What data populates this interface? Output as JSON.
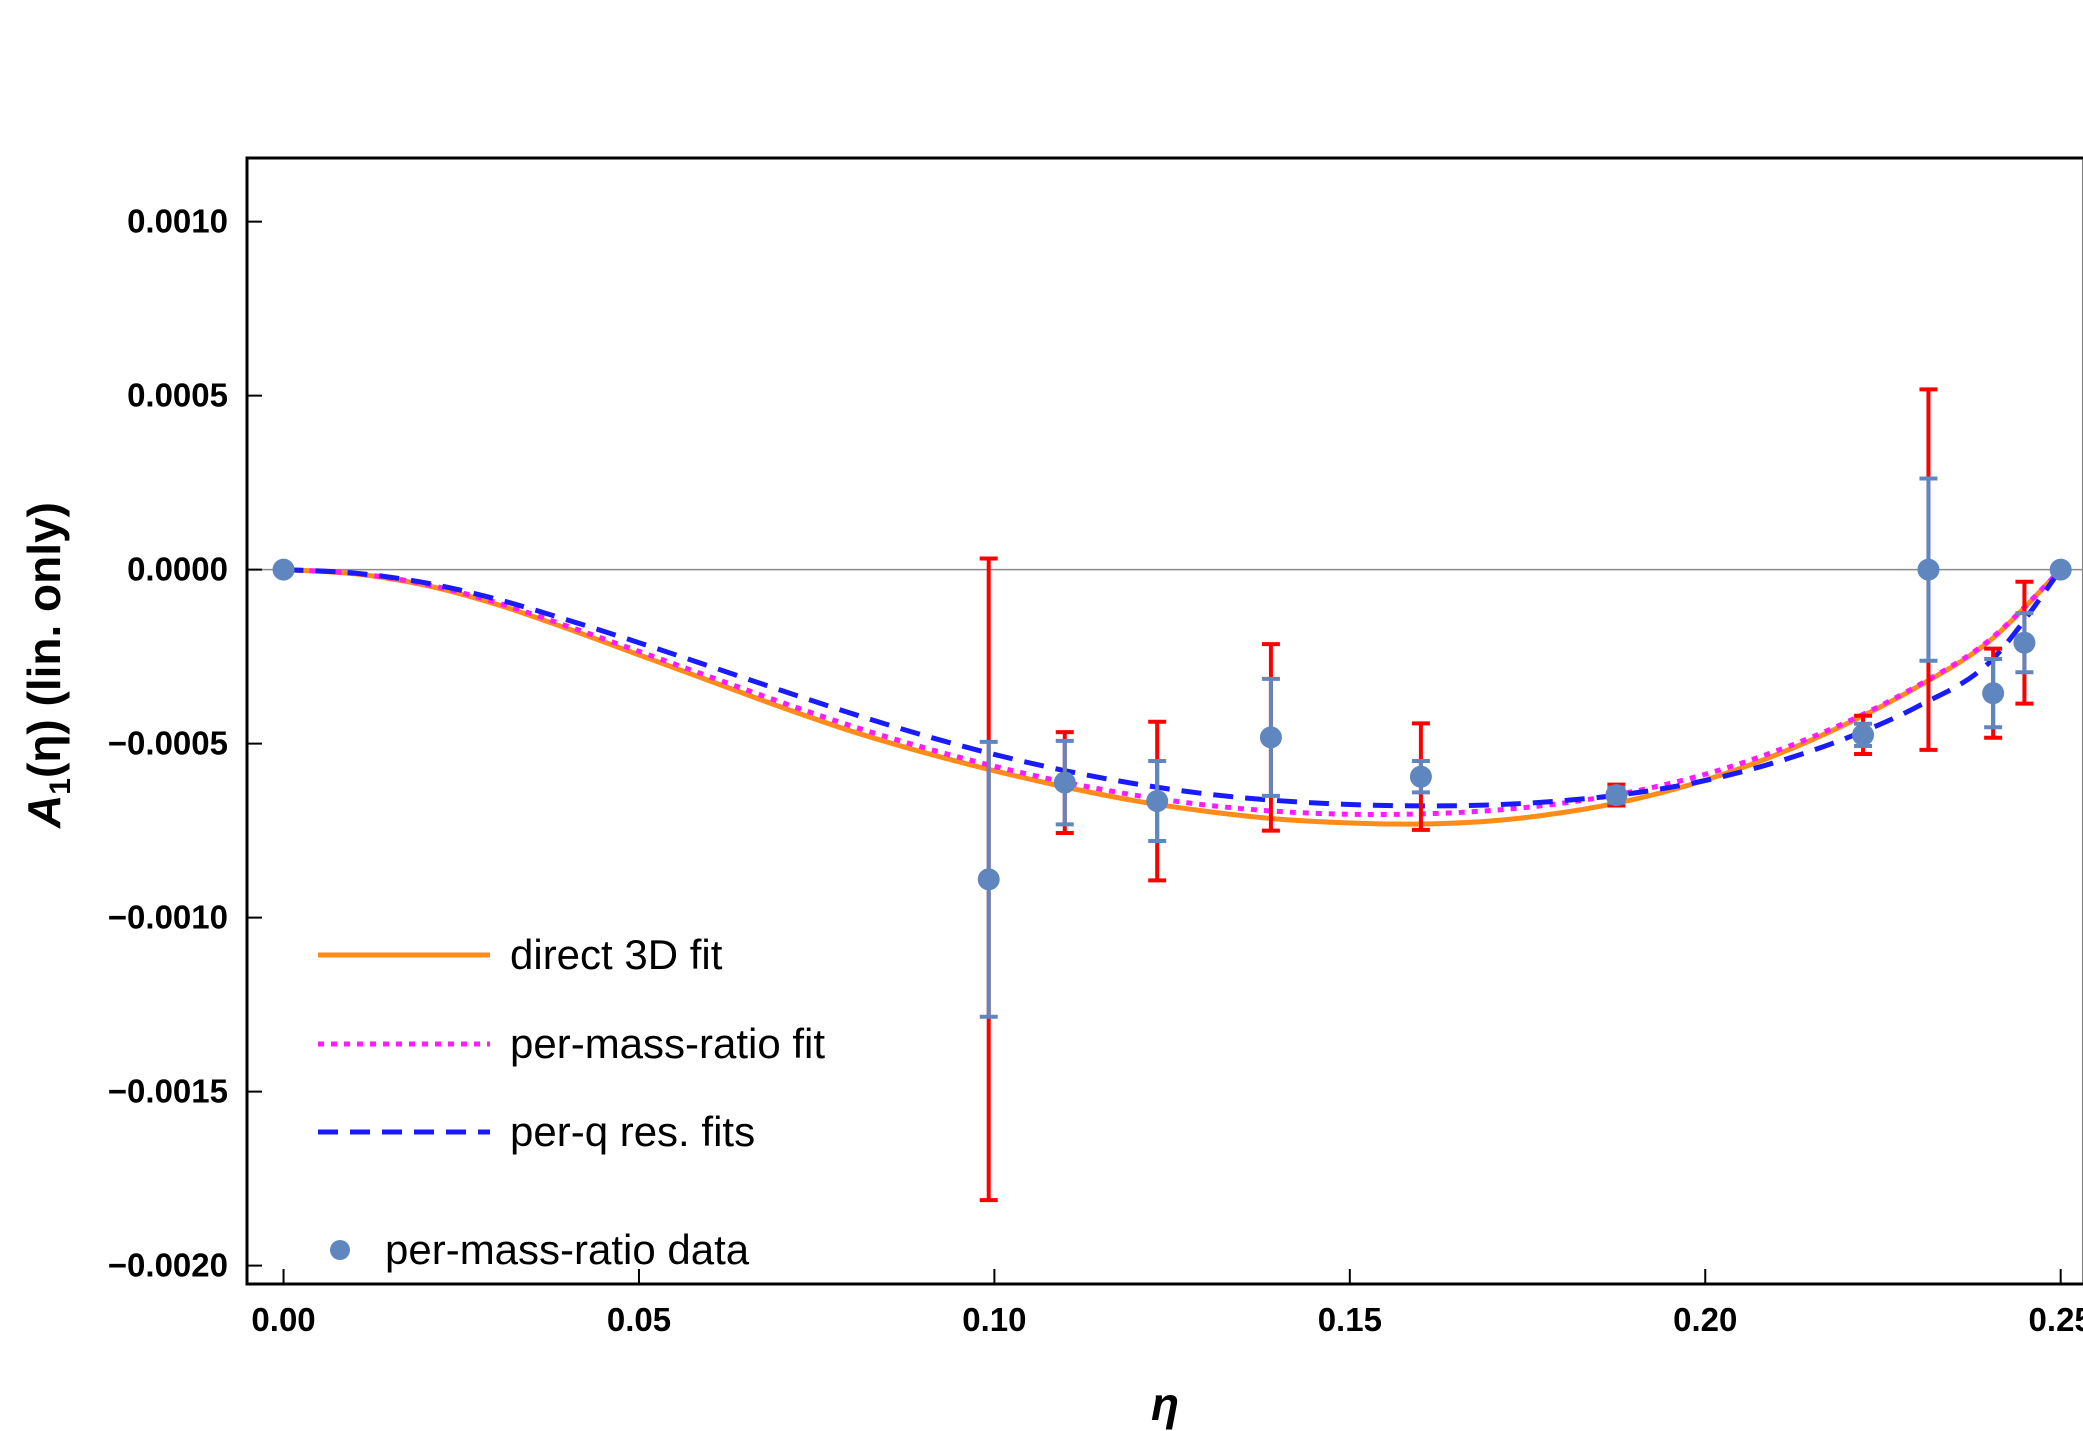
{
  "chart_data": {
    "type": "line",
    "title": "",
    "xlabel": "η",
    "ylabel": "A1(η) (lin. only)",
    "ylabel_main": "A",
    "ylabel_sub": "1",
    "ylabel_rest": "(η) (lin. only)",
    "xlim": [
      -0.005,
      0.253
    ],
    "ylim": [
      -0.00205,
      0.00118
    ],
    "x_ticks": [
      0.0,
      0.05,
      0.1,
      0.15,
      0.2,
      0.25
    ],
    "x_tick_labels": [
      "0.00",
      "0.05",
      "0.10",
      "0.15",
      "0.20",
      "0.25"
    ],
    "y_ticks": [
      0.001,
      0.0005,
      0.0,
      -0.0005,
      -0.001,
      -0.0015,
      -0.002
    ],
    "y_tick_labels": [
      "0.0010",
      "0.0005",
      "0.0000",
      "−0.0005",
      "−0.0010",
      "−0.0015",
      "−0.0020"
    ],
    "grid": false,
    "zero_line": true,
    "legend_position": "bottom-left",
    "series": [
      {
        "name": "direct 3D fit",
        "style": "solid",
        "color": "#ff8c1a",
        "x": [
          0.0,
          0.01,
          0.02,
          0.03,
          0.04,
          0.05,
          0.06,
          0.07,
          0.08,
          0.09,
          0.1,
          0.11,
          0.12,
          0.13,
          0.14,
          0.15,
          0.16,
          0.17,
          0.18,
          0.19,
          0.2,
          0.21,
          0.22,
          0.23,
          0.24,
          0.25
        ],
        "y": [
          0.0,
          -1.2e-05,
          -4.5e-05,
          -0.0001,
          -0.00017,
          -0.000245,
          -0.00032,
          -0.000395,
          -0.000465,
          -0.000525,
          -0.000578,
          -0.000625,
          -0.000665,
          -0.000695,
          -0.000717,
          -0.000728,
          -0.000731,
          -0.000722,
          -0.000698,
          -0.00066,
          -0.000605,
          -0.000532,
          -0.000442,
          -0.000335,
          -0.000205,
          0.0
        ]
      },
      {
        "name": "per-mass-ratio fit",
        "style": "dotted",
        "color": "#ff1aff",
        "x": [
          0.0,
          0.01,
          0.02,
          0.03,
          0.04,
          0.05,
          0.06,
          0.07,
          0.08,
          0.09,
          0.1,
          0.11,
          0.12,
          0.13,
          0.14,
          0.15,
          0.16,
          0.17,
          0.18,
          0.19,
          0.2,
          0.21,
          0.22,
          0.23,
          0.24,
          0.25
        ],
        "y": [
          0.0,
          -1.1e-05,
          -4.2e-05,
          -9.5e-05,
          -0.000163,
          -0.000235,
          -0.000308,
          -0.000381,
          -0.00045,
          -0.000511,
          -0.000565,
          -0.000611,
          -0.000649,
          -0.000677,
          -0.000695,
          -0.000703,
          -0.000702,
          -0.000692,
          -0.000671,
          -0.000637,
          -0.000588,
          -0.000521,
          -0.000437,
          -0.000332,
          -0.000202,
          0.0
        ]
      },
      {
        "name": "per-q res. fits",
        "style": "dashed",
        "color": "#1a1aff",
        "x": [
          0.0,
          0.01,
          0.02,
          0.03,
          0.04,
          0.05,
          0.06,
          0.07,
          0.08,
          0.09,
          0.1,
          0.11,
          0.12,
          0.13,
          0.14,
          0.15,
          0.16,
          0.17,
          0.18,
          0.19,
          0.2,
          0.21,
          0.22,
          0.23,
          0.24,
          0.25
        ],
        "y": [
          0.0,
          -1e-05,
          -3.8e-05,
          -8.5e-05,
          -0.000145,
          -0.00021,
          -0.000278,
          -0.000347,
          -0.000414,
          -0.000476,
          -0.000531,
          -0.000578,
          -0.000616,
          -0.000645,
          -0.000664,
          -0.000675,
          -0.000679,
          -0.000676,
          -0.000664,
          -0.000642,
          -0.000606,
          -0.000553,
          -0.000483,
          -0.000392,
          -0.000266,
          0.0
        ]
      }
    ],
    "points": {
      "name": "per-mass-ratio data",
      "color": "#5f86bf",
      "x": [
        0.0,
        0.0992,
        0.1099,
        0.1229,
        0.1389,
        0.16,
        0.1875,
        0.2222,
        0.2314,
        0.2405,
        0.2449,
        0.25
      ],
      "y": [
        0.0,
        -0.00089,
        -0.000612,
        -0.000665,
        -0.000482,
        -0.000595,
        -0.000648,
        -0.000475,
        0.0,
        -0.000355,
        -0.00021,
        0.0
      ],
      "err_inner": [
        0.0,
        0.000395,
        0.00012,
        0.000115,
        0.000168,
        4.5e-05,
        2.2e-05,
        3.2e-05,
        0.000262,
        9.8e-05,
        8.5e-05,
        0.0
      ],
      "err_outer": [
        0.0,
        0.000922,
        0.000145,
        0.000228,
        0.000268,
        0.000153,
        3e-05,
        5.5e-05,
        0.000518,
        0.000128,
        0.000175,
        0.0
      ],
      "err_inner_color": "#5f86bf",
      "err_outer_color": "#ff0000"
    }
  }
}
